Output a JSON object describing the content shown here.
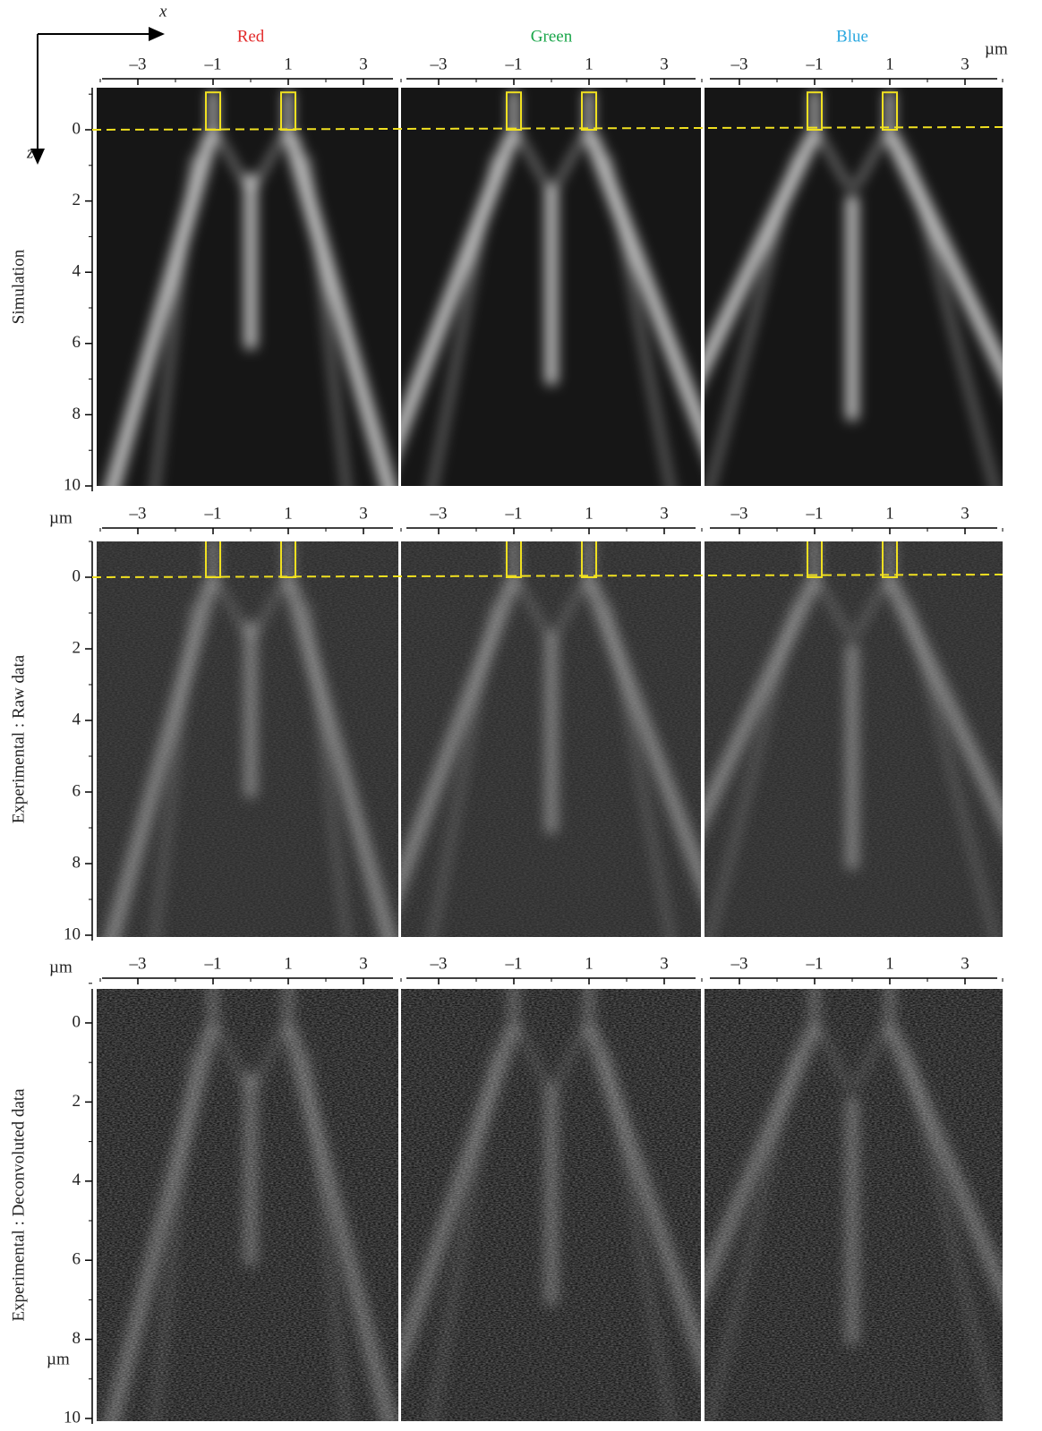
{
  "axes": {
    "x": "x",
    "z": "z",
    "unit": "µm"
  },
  "columns": [
    {
      "label": "Red",
      "color": "#e32b2b"
    },
    {
      "label": "Green",
      "color": "#1aa64a"
    },
    {
      "label": "Blue",
      "color": "#2aa8e0"
    }
  ],
  "rows": [
    {
      "label": "Simulation"
    },
    {
      "label": "Experimental : Raw data"
    },
    {
      "label": "Experimental : Deconvoluted data"
    }
  ],
  "x_ticks": [
    {
      "value": -3,
      "label": "–3"
    },
    {
      "value": -1,
      "label": "–1"
    },
    {
      "value": 1,
      "label": "1"
    },
    {
      "value": 3,
      "label": "3"
    }
  ],
  "z_ticks": [
    0,
    2,
    4,
    6,
    8,
    10
  ]
}
